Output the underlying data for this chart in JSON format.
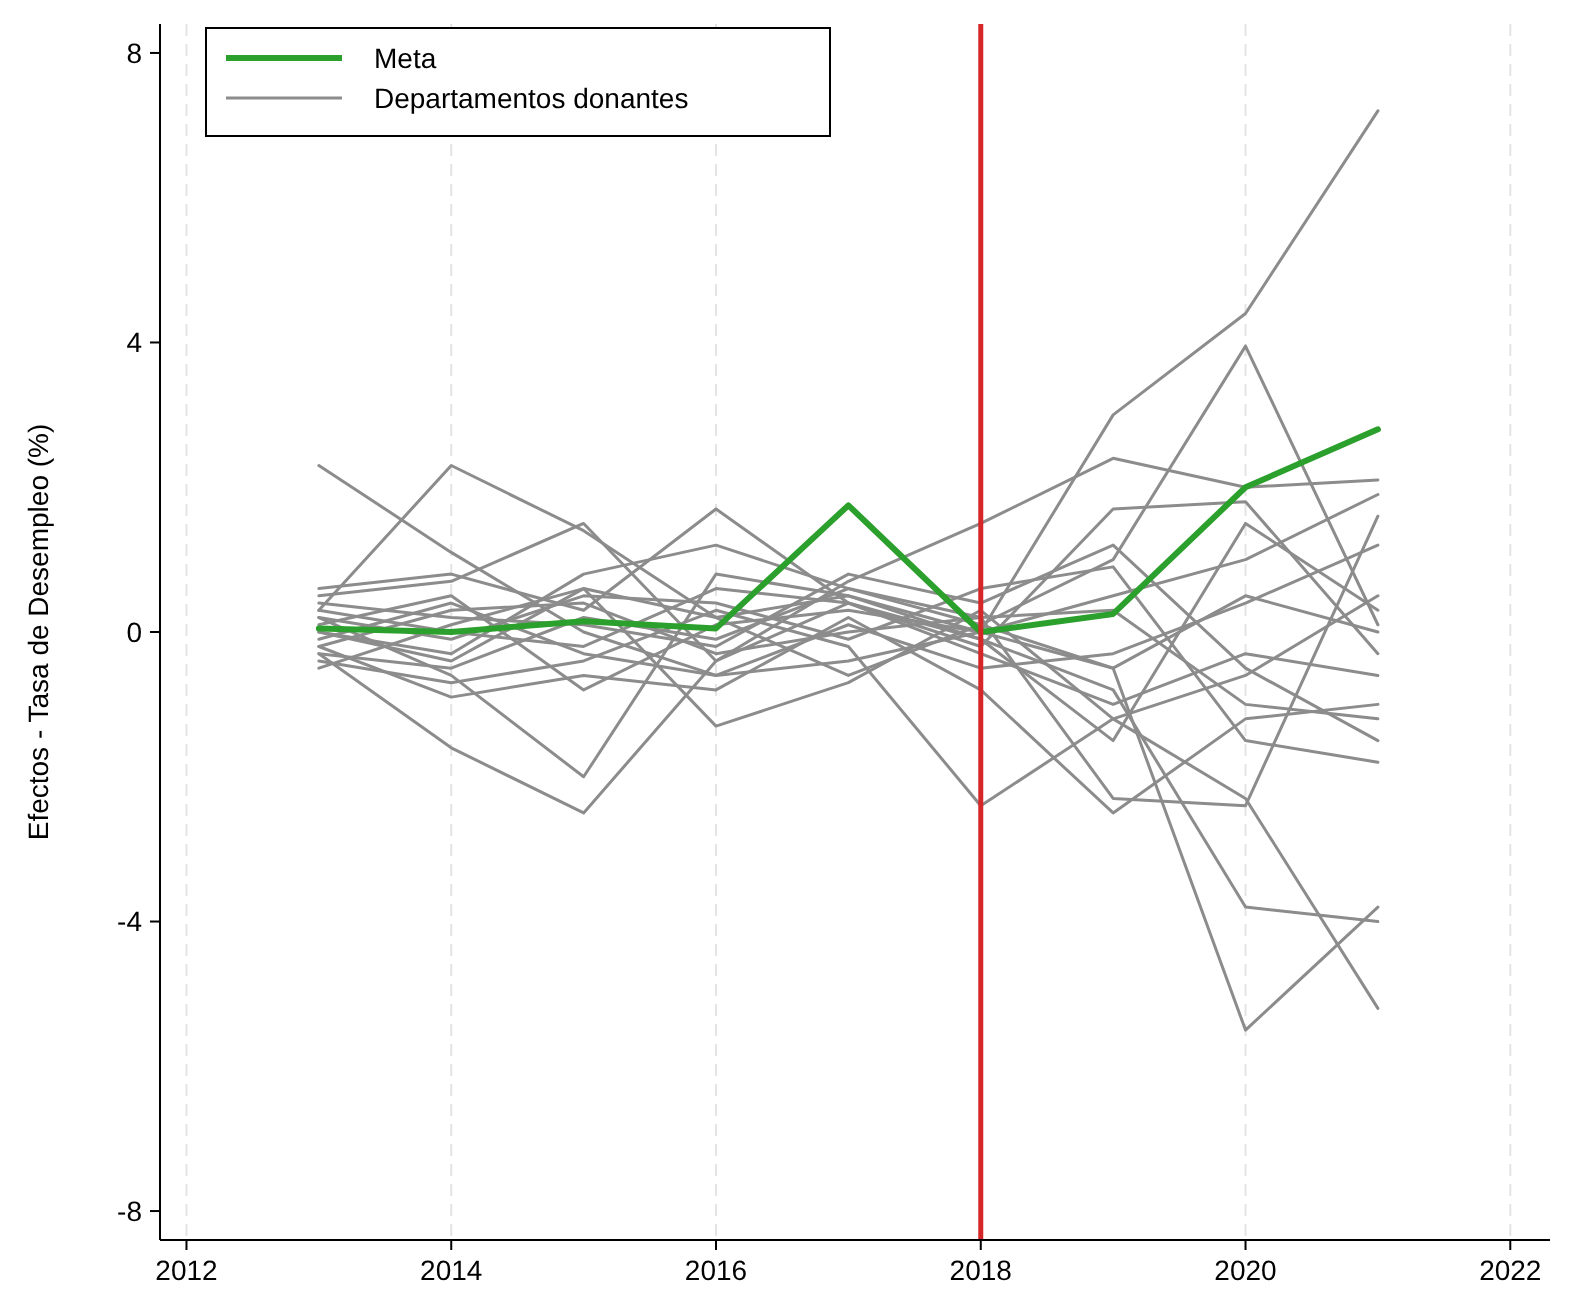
{
  "chart_data": {
    "type": "line",
    "ylabel": "Efectos - Tasa de Desempleo (%)",
    "x": [
      2013,
      2014,
      2015,
      2016,
      2017,
      2018,
      2019,
      2020,
      2021
    ],
    "xlim": [
      2011.8,
      2022.3
    ],
    "xticks": [
      2012,
      2014,
      2016,
      2018,
      2020,
      2022
    ],
    "ylim": [
      -8.4,
      8.4
    ],
    "yticks": [
      -8,
      -4,
      0,
      4,
      8
    ],
    "grid": "x",
    "legend": "top left",
    "line_style": "solid",
    "ref_lines": [
      {
        "axis": "x",
        "value": 2018,
        "color": "#d62728"
      }
    ],
    "series": [
      {
        "name": "Meta",
        "color": "#2ca02c",
        "values": [
          0.05,
          0,
          0.15,
          0.05,
          1.75,
          0,
          0.25,
          2.0,
          2.8
        ]
      },
      {
        "name": "Departamentos donantes",
        "color": "#8c8c8c",
        "values": [
          2.3,
          1.1,
          0.0,
          -0.6,
          -0.4,
          0.0,
          3.0,
          4.4,
          7.2
        ]
      },
      {
        "color": "#8c8c8c",
        "values": [
          0.3,
          2.3,
          1.4,
          0.2,
          -0.6,
          0.1,
          1.0,
          3.95,
          0.1
        ]
      },
      {
        "color": "#8c8c8c",
        "values": [
          0.5,
          0.7,
          1.5,
          -0.4,
          0.7,
          1.5,
          2.4,
          2.0,
          2.1
        ]
      },
      {
        "color": "#8c8c8c",
        "values": [
          -0.3,
          -1.6,
          -2.5,
          -0.4,
          0.4,
          -0.1,
          -0.8,
          -3.8,
          -4.0
        ]
      },
      {
        "color": "#8c8c8c",
        "values": [
          0.2,
          -0.6,
          -2.0,
          0.8,
          0.5,
          0.0,
          -0.5,
          -5.5,
          -3.8
        ]
      },
      {
        "color": "#8c8c8c",
        "values": [
          0.6,
          0.8,
          0.3,
          1.7,
          0.4,
          -0.2,
          1.7,
          1.8,
          -0.3
        ]
      },
      {
        "color": "#8c8c8c",
        "values": [
          -0.5,
          0.1,
          0.6,
          -1.3,
          -0.7,
          0.3,
          -1.2,
          -2.3,
          -5.2
        ]
      },
      {
        "color": "#8c8c8c",
        "values": [
          0.0,
          -0.3,
          0.8,
          1.2,
          0.6,
          0.2,
          -2.3,
          -2.4,
          1.6
        ]
      },
      {
        "color": "#8c8c8c",
        "values": [
          -0.2,
          -0.9,
          -0.6,
          -0.8,
          0.2,
          -0.8,
          -2.5,
          -1.2,
          -1.0
        ]
      },
      {
        "color": "#8c8c8c",
        "values": [
          0.1,
          0.5,
          -0.8,
          0.1,
          0.3,
          0.0,
          0.5,
          1.0,
          1.9
        ]
      },
      {
        "color": "#8c8c8c",
        "values": [
          -0.4,
          -0.7,
          -0.4,
          0.3,
          -0.2,
          -2.4,
          -1.2,
          -0.6,
          0.5
        ]
      },
      {
        "color": "#8c8c8c",
        "values": [
          0.4,
          0.2,
          0.1,
          -0.2,
          0.8,
          0.4,
          1.2,
          -0.5,
          -1.5
        ]
      },
      {
        "color": "#8c8c8c",
        "values": [
          -0.1,
          0.4,
          -0.3,
          -0.6,
          0.1,
          -0.5,
          -0.3,
          0.4,
          1.2
        ]
      },
      {
        "color": "#8c8c8c",
        "values": [
          0.2,
          -0.1,
          0.5,
          0.4,
          -0.1,
          0.6,
          0.9,
          -1.5,
          -1.8
        ]
      },
      {
        "color": "#8c8c8c",
        "values": [
          -0.3,
          -0.5,
          0.2,
          -0.1,
          0.6,
          0.1,
          -0.5,
          0.5,
          0.0
        ]
      },
      {
        "color": "#8c8c8c",
        "values": [
          0.3,
          0.0,
          -0.2,
          0.6,
          0.4,
          -0.3,
          -1.0,
          -0.3,
          -0.6
        ]
      },
      {
        "color": "#8c8c8c",
        "values": [
          -0.2,
          0.3,
          0.4,
          -0.3,
          0.0,
          0.2,
          0.3,
          -1.0,
          -1.2
        ]
      },
      {
        "color": "#8c8c8c",
        "values": [
          0.0,
          -0.4,
          0.6,
          0.2,
          0.5,
          -0.1,
          -1.5,
          1.5,
          0.3
        ]
      }
    ]
  }
}
